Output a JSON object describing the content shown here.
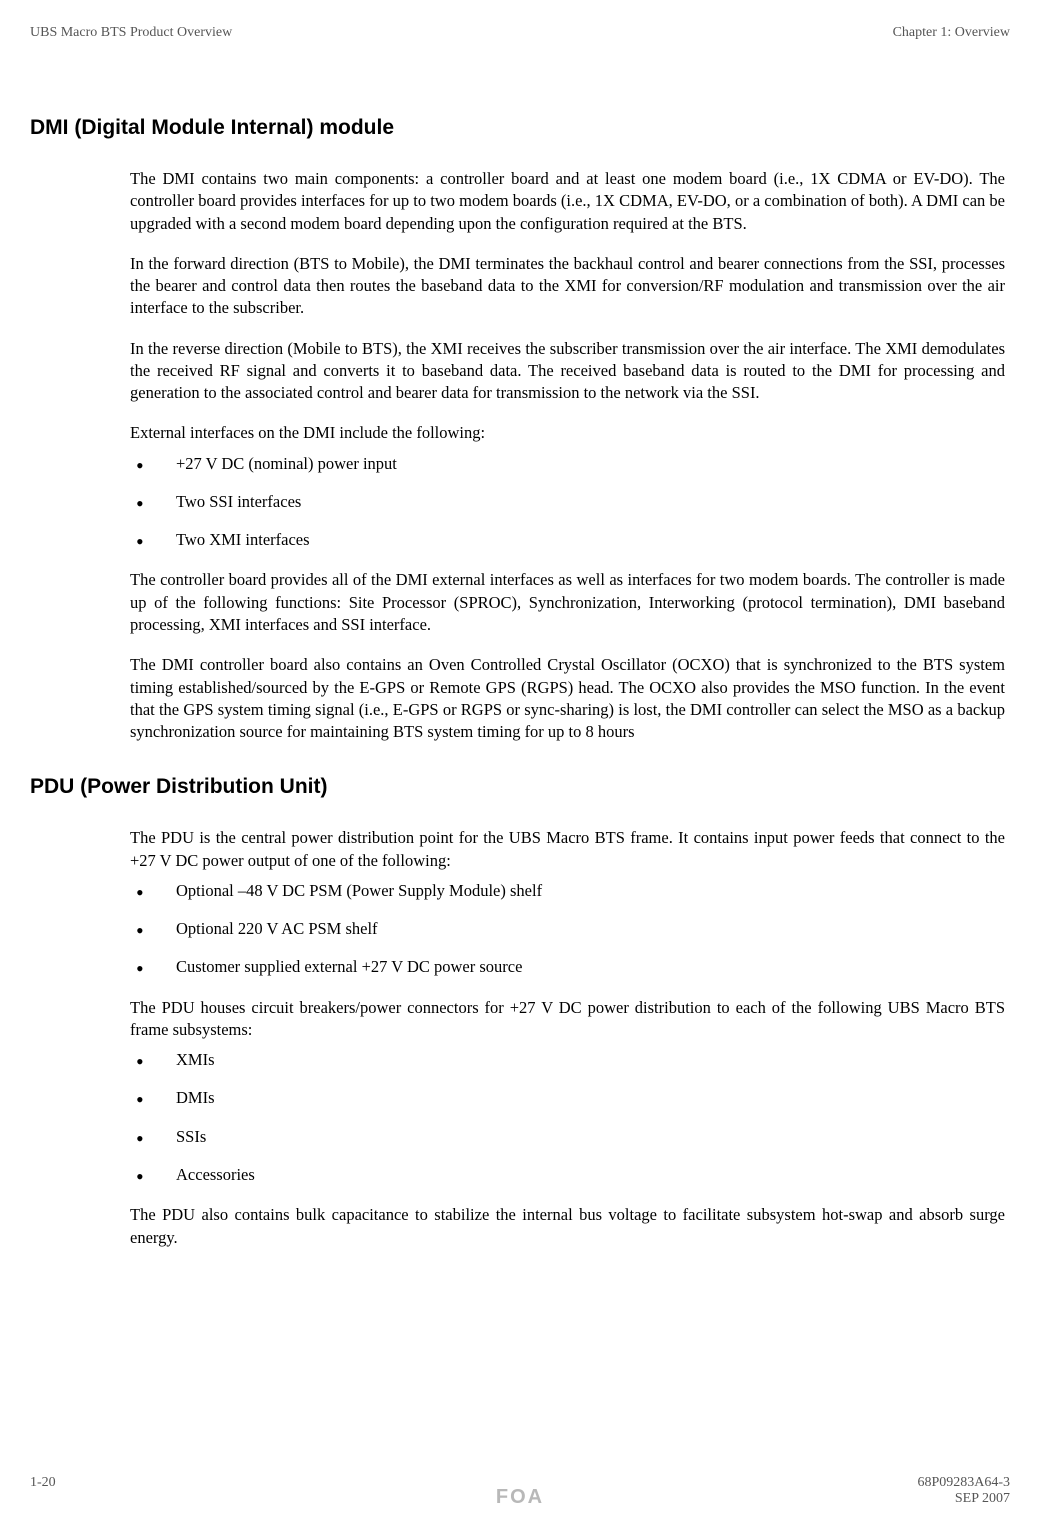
{
  "header": {
    "left": "UBS Macro BTS Product Overview",
    "right": "Chapter 1: Overview"
  },
  "section1": {
    "title": "DMI (Digital Module Internal) module",
    "p1": "The DMI contains two main components: a controller board and at least one modem board (i.e., 1X CDMA or EV-DO). The controller board provides interfaces for up to two modem boards (i.e., 1X CDMA, EV-DO, or a combination of both). A DMI can be upgraded with a second modem board depending upon the configuration required at the BTS.",
    "p2": "In the forward direction (BTS to Mobile), the DMI terminates the backhaul control and bearer connections from the SSI, processes the bearer and control data then routes the baseband data to the XMI for conversion/RF modulation and transmission over the air interface to the subscriber.",
    "p3": "In the reverse direction (Mobile to BTS), the XMI receives the subscriber transmission over the air interface. The XMI demodulates the received RF signal and converts it to baseband data. The received baseband data is routed to the DMI for processing and generation to the associated control and bearer data for transmission to the network via the SSI.",
    "p4": "External interfaces on the DMI include the following:",
    "list1": {
      "item1": "+27 V DC (nominal) power input",
      "item2": "Two SSI interfaces",
      "item3": "Two XMI interfaces"
    },
    "p5": "The controller board provides all of the DMI external interfaces as well as interfaces for two modem boards. The controller is made up of the following functions: Site Processor (SPROC), Synchronization, Interworking (protocol termination), DMI baseband processing, XMI interfaces and SSI interface.",
    "p6": "The DMI controller board also contains an Oven Controlled Crystal Oscillator (OCXO) that is synchronized to the BTS system timing established/sourced by the E-GPS or Remote GPS (RGPS) head. The OCXO also provides the MSO function. In the event that the GPS system timing signal (i.e., E-GPS or RGPS or sync-sharing) is lost, the DMI controller can select the MSO as a backup synchronization source for maintaining BTS system timing for up to 8 hours"
  },
  "section2": {
    "title": "PDU (Power Distribution Unit)",
    "p1": "The PDU is the central power distribution point for the UBS Macro BTS frame. It contains input power feeds that connect to the +27 V DC power output of one of the following:",
    "list1": {
      "item1": "Optional –48 V DC PSM (Power Supply Module) shelf",
      "item2": "Optional 220 V AC PSM shelf",
      "item3": "Customer supplied external +27 V DC power source"
    },
    "p2": "The PDU houses circuit breakers/power connectors for +27 V DC power distribution to each of the following UBS Macro BTS frame subsystems:",
    "list2": {
      "item1": "XMIs",
      "item2": "DMIs",
      "item3": "SSIs",
      "item4": "Accessories"
    },
    "p3": "The PDU also contains bulk capacitance to stabilize the internal bus voltage to facilitate subsystem hot-swap and absorb surge energy."
  },
  "footer": {
    "left": "1-20",
    "right": "68P09283A64-3",
    "center": "FOA",
    "right2": "SEP 2007"
  }
}
